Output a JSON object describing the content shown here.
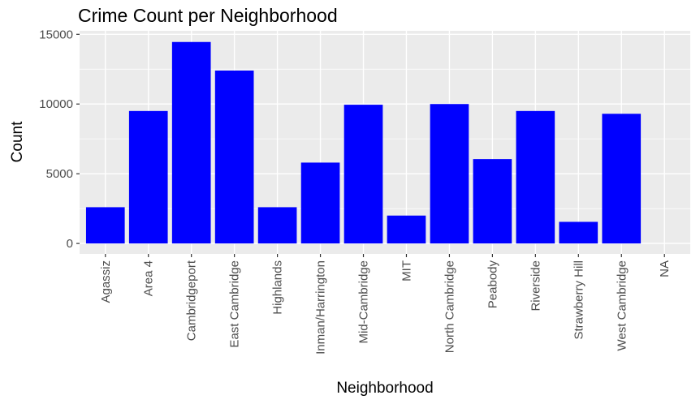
{
  "chart_data": {
    "type": "bar",
    "title": "Crime Count per Neighborhood",
    "xlabel": "Neighborhood",
    "ylabel": "Count",
    "categories": [
      "Agassiz",
      "Area 4",
      "Cambridgeport",
      "East Cambridge",
      "Highlands",
      "Inman/Harrington",
      "Mid-Cambridge",
      "MIT",
      "North Cambridge",
      "Peabody",
      "Riverside",
      "Strawberry Hill",
      "West Cambridge",
      "NA"
    ],
    "values": [
      2600,
      9500,
      14450,
      12400,
      2600,
      5800,
      9950,
      2000,
      10000,
      6050,
      9500,
      1550,
      9300,
      0
    ],
    "ylim": [
      -750,
      15250
    ],
    "yticks": [
      0,
      5000,
      10000,
      15000
    ],
    "ytick_labels": [
      "0",
      "5000",
      "10000",
      "15000"
    ],
    "bar_color": "#0000ff",
    "panel_background": "#ebebeb",
    "grid_color": "#ffffff",
    "grid": true,
    "legend": "none"
  }
}
